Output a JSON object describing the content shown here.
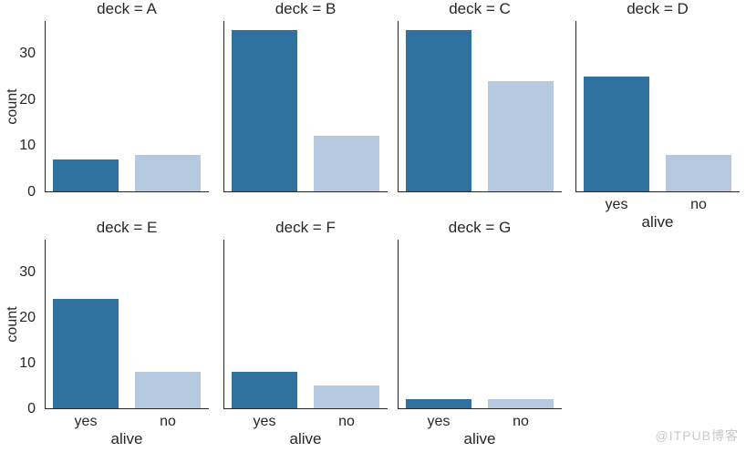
{
  "watermark": "@ITPUB博客",
  "colors": {
    "bar_yes": "#30729f",
    "bar_no": "#b5c9e1",
    "spine": "#262626",
    "text": "#262626",
    "watermark": "#c9c9c9",
    "background": "#ffffff"
  },
  "chart_data": {
    "type": "bar",
    "title": "",
    "facet_variable": "deck",
    "categories": [
      "yes",
      "no"
    ],
    "xlabel": "alive",
    "ylabel": "count",
    "yticks": [
      0,
      10,
      20,
      30
    ],
    "ylim": [
      0,
      37.2
    ],
    "grid": false,
    "legend": false,
    "series_colors": {
      "yes": "#30729f",
      "no": "#b5c9e1"
    },
    "facets": [
      {
        "deck": "A",
        "label": "deck = A",
        "values": [
          7,
          8
        ]
      },
      {
        "deck": "B",
        "label": "deck = B",
        "values": [
          35,
          12
        ]
      },
      {
        "deck": "C",
        "label": "deck = C",
        "values": [
          35,
          24
        ]
      },
      {
        "deck": "D",
        "label": "deck = D",
        "values": [
          25,
          8
        ]
      },
      {
        "deck": "E",
        "label": "deck = E",
        "values": [
          24,
          8
        ]
      },
      {
        "deck": "F",
        "label": "deck = F",
        "values": [
          8,
          5
        ]
      },
      {
        "deck": "G",
        "label": "deck = G",
        "values": [
          2,
          2
        ]
      }
    ]
  }
}
